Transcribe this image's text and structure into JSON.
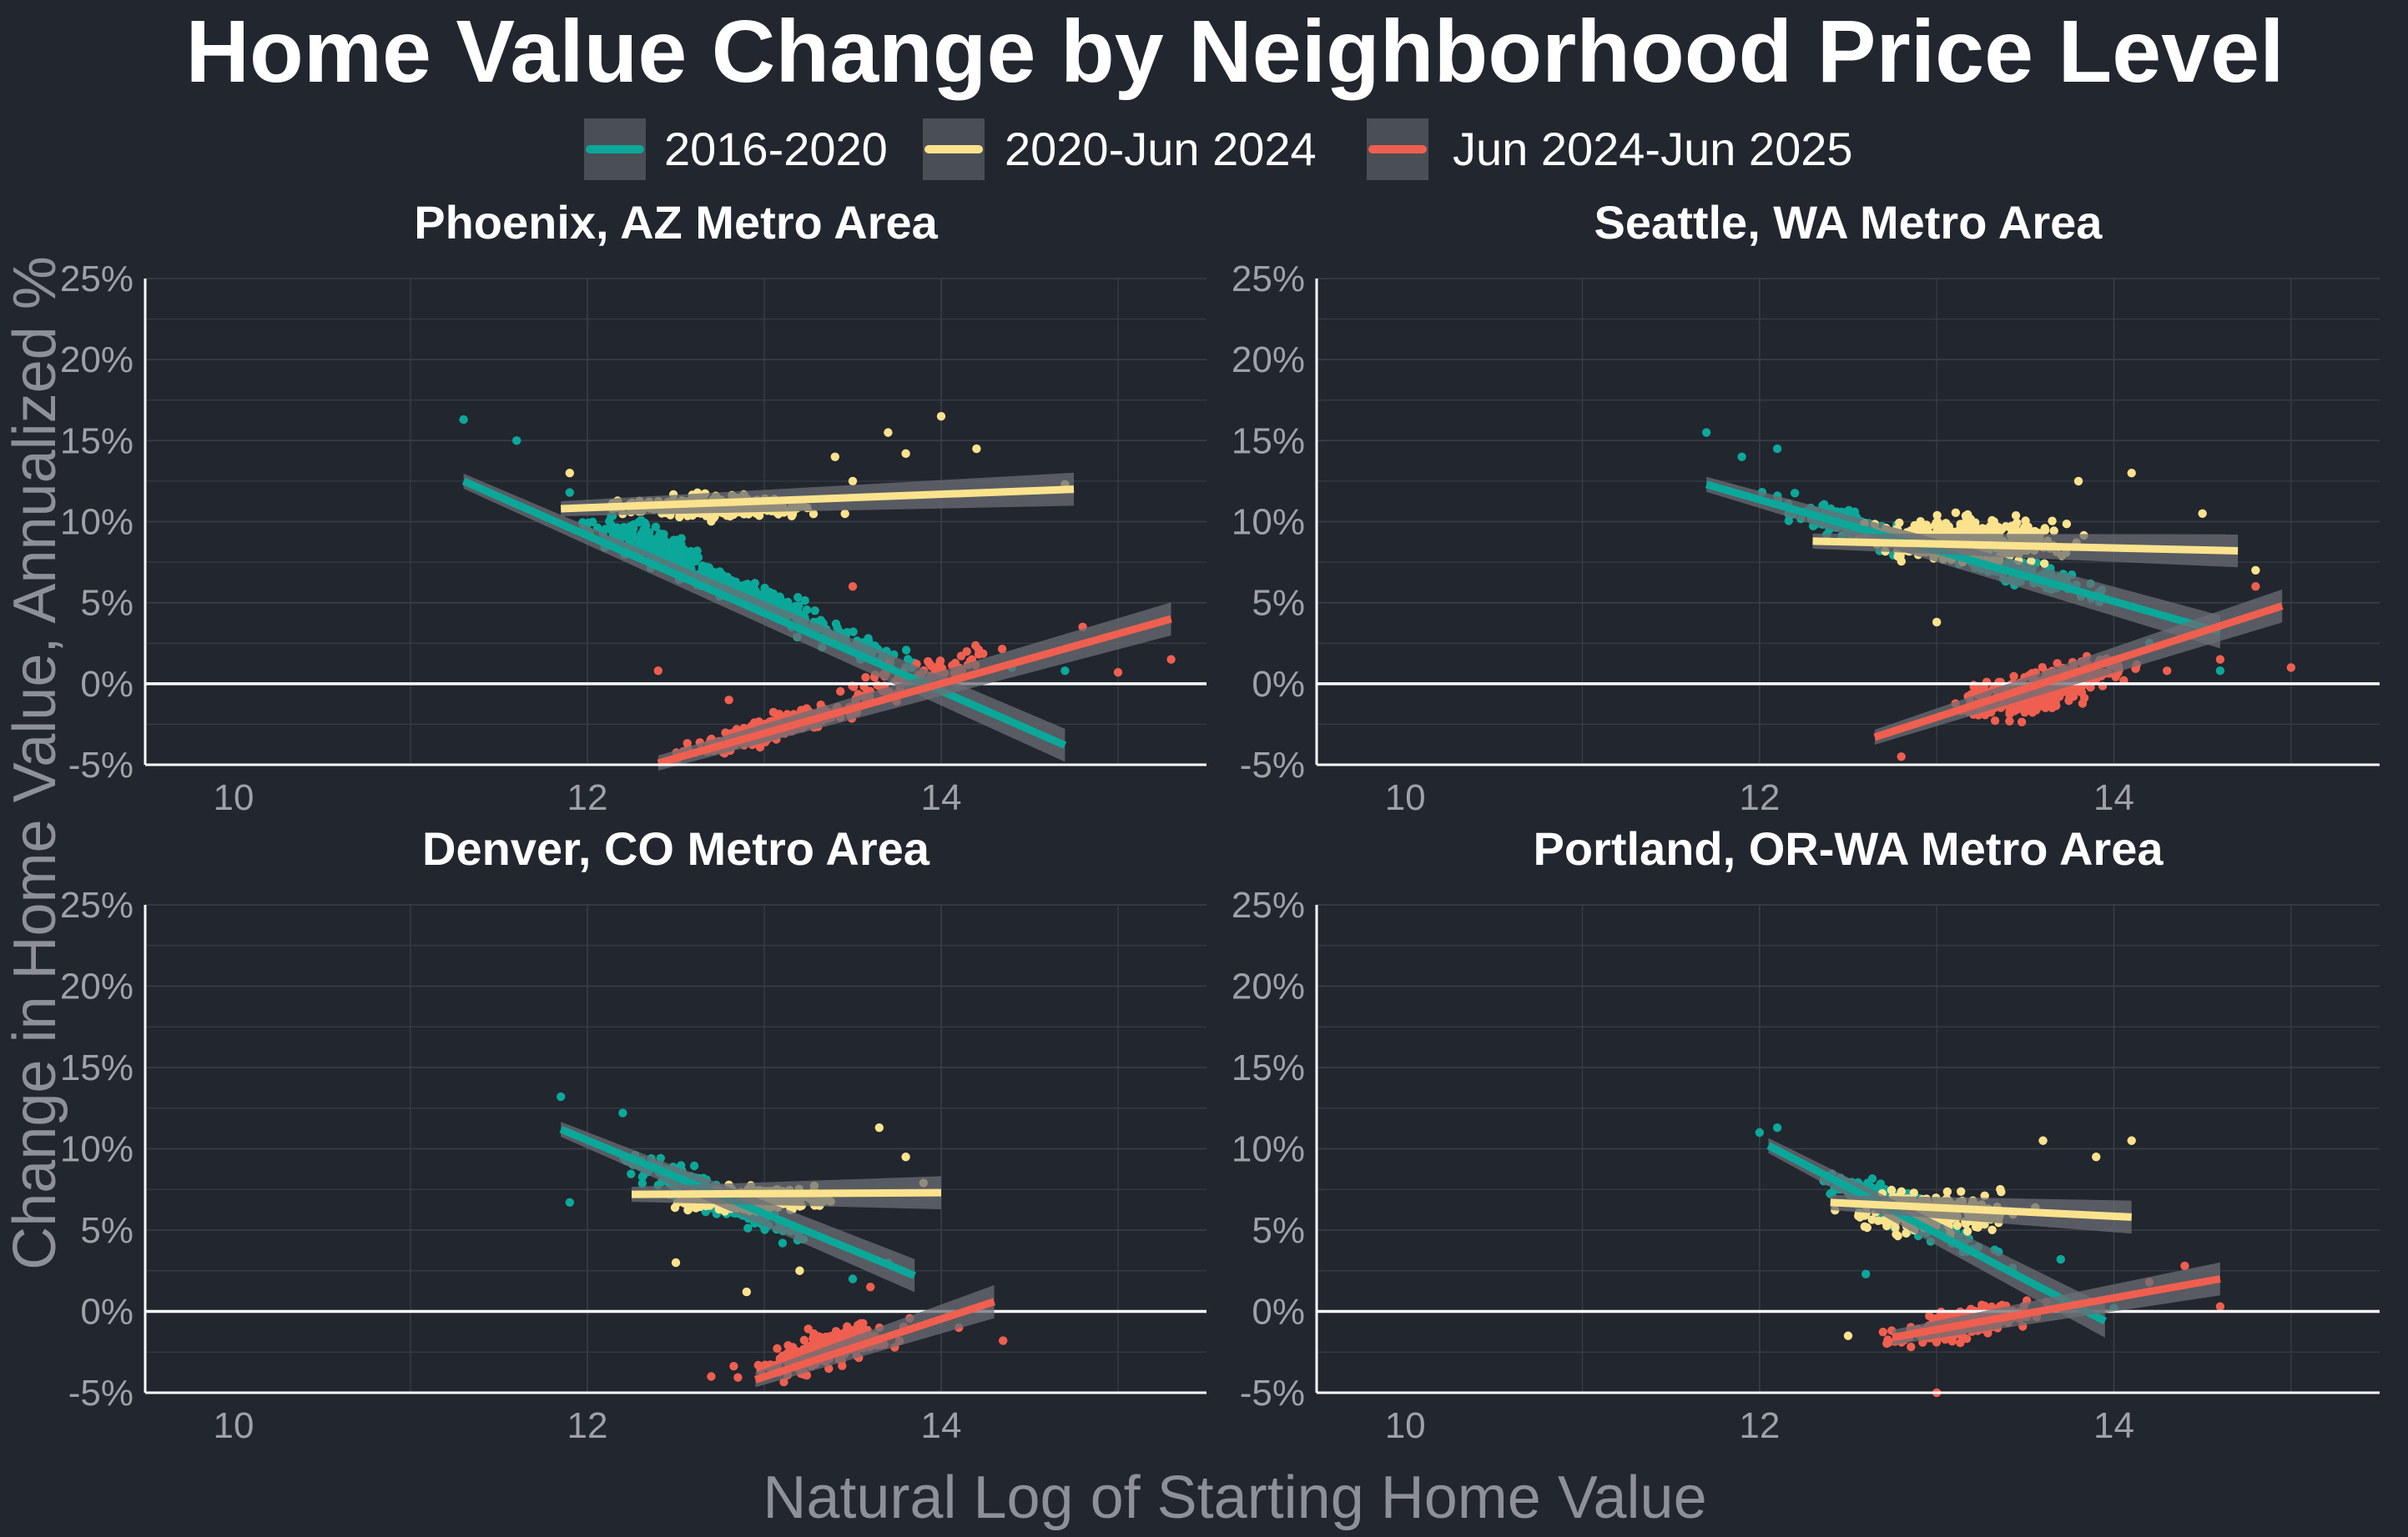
{
  "title": "Home Value Change by Neighborhood Price Level",
  "xlabel": "Natural Log of Starting Home Value",
  "ylabel": "Change in Home Value, Annualized %",
  "colors": {
    "background": "#22262e",
    "2016-2020": "#0ba89a",
    "2020-Jun 2024": "#fbe38e",
    "Jun 2024-Jun 2025": "#ef5f50",
    "grid": "#3a3e47",
    "zero_line": "#ffffff",
    "tick_text": "#9ea1a8"
  },
  "legend": [
    {
      "key": "2016-2020",
      "label": "2016-2020"
    },
    {
      "key": "2020-Jun 2024",
      "label": "2020-Jun 2024"
    },
    {
      "key": "Jun 2024-Jun 2025",
      "label": "Jun 2024-Jun 2025"
    }
  ],
  "chart_data": {
    "type": "scatter",
    "facets": [
      "Phoenix, AZ Metro Area",
      "Seattle, WA Metro Area",
      "Denver, CO Metro Area",
      "Portland, OR-WA Metro Area"
    ],
    "x_ticks": [
      10,
      12,
      14
    ],
    "x_tick_labels": [
      "10",
      "12",
      "14"
    ],
    "y_ticks": [
      -5,
      0,
      5,
      10,
      15,
      20,
      25
    ],
    "y_tick_labels": [
      "-5%",
      "0%",
      "5%",
      "10%",
      "15%",
      "20%",
      "25%"
    ],
    "xlim": [
      9.5,
      15.5
    ],
    "ylim": [
      -5,
      25
    ],
    "zero_line": 0,
    "grid": true,
    "legend_position": "top",
    "panels": [
      {
        "name": "Phoenix, AZ Metro Area",
        "series": [
          {
            "name": "2016-2020",
            "fit": [
              [
                11.3,
                12.5
              ],
              [
                14.7,
                -3.8
              ]
            ],
            "clouds": [
              {
                "xc": 12.35,
                "yc": 8.5,
                "sx": 0.3,
                "sy": 1.6,
                "n": 200,
                "slope": -3.5
              },
              {
                "xc": 12.9,
                "yc": 5.6,
                "sx": 0.35,
                "sy": 1.0,
                "n": 260,
                "slope": -3.8
              },
              {
                "xc": 13.5,
                "yc": 2.5,
                "sx": 0.35,
                "sy": 1.2,
                "n": 70,
                "slope": -3.8
              }
            ],
            "outliers": [
              [
                11.3,
                16.3
              ],
              [
                11.6,
                15.0
              ],
              [
                14.4,
                1.0
              ],
              [
                14.7,
                0.8
              ],
              [
                13.9,
                0.3
              ],
              [
                11.9,
                11.8
              ]
            ]
          },
          {
            "name": "2020-Jun 2024",
            "fit": [
              [
                11.85,
                10.8
              ],
              [
                14.75,
                12.0
              ]
            ],
            "clouds": [
              {
                "xc": 12.75,
                "yc": 10.9,
                "sx": 0.38,
                "sy": 0.9,
                "n": 380,
                "slope": 0
              }
            ],
            "outliers": [
              [
                14.0,
                16.5
              ],
              [
                13.7,
                15.5
              ],
              [
                13.8,
                14.2
              ],
              [
                13.4,
                14.0
              ],
              [
                14.7,
                12.3
              ],
              [
                14.2,
                14.5
              ],
              [
                13.5,
                12.5
              ],
              [
                11.9,
                13.0
              ]
            ]
          },
          {
            "name": "Jun 2024-Jun 2025",
            "fit": [
              [
                12.4,
                -4.9
              ],
              [
                15.3,
                4.0
              ]
            ],
            "clouds": [
              {
                "xc": 13.05,
                "yc": -2.8,
                "sx": 0.35,
                "sy": 1.0,
                "n": 340,
                "slope": 3.0
              },
              {
                "xc": 13.9,
                "yc": 0.6,
                "sx": 0.4,
                "sy": 1.4,
                "n": 80,
                "slope": 3.0
              }
            ],
            "outliers": [
              [
                12.4,
                0.8
              ],
              [
                13.5,
                6.0
              ],
              [
                15.3,
                1.5
              ],
              [
                15.0,
                0.7
              ],
              [
                14.8,
                3.5
              ],
              [
                12.8,
                -1.0
              ]
            ]
          }
        ]
      },
      {
        "name": "Seattle, WA Metro Area",
        "series": [
          {
            "name": "2016-2020",
            "fit": [
              [
                11.7,
                12.3
              ],
              [
                14.6,
                3.2
              ]
            ],
            "clouds": [
              {
                "xc": 12.6,
                "yc": 9.5,
                "sx": 0.35,
                "sy": 1.3,
                "n": 200,
                "slope": -3.0
              },
              {
                "xc": 13.4,
                "yc": 7.2,
                "sx": 0.4,
                "sy": 1.3,
                "n": 150,
                "slope": -3.0
              }
            ],
            "outliers": [
              [
                11.7,
                15.5
              ],
              [
                11.9,
                14.0
              ],
              [
                12.1,
                14.5
              ],
              [
                14.6,
                0.8
              ],
              [
                14.2,
                2.5
              ]
            ]
          },
          {
            "name": "2020-Jun 2024",
            "fit": [
              [
                12.3,
                8.8
              ],
              [
                14.7,
                8.2
              ]
            ],
            "clouds": [
              {
                "xc": 13.2,
                "yc": 8.9,
                "sx": 0.4,
                "sy": 1.9,
                "n": 380,
                "slope": 0
              }
            ],
            "outliers": [
              [
                14.1,
                13.0
              ],
              [
                14.5,
                10.5
              ],
              [
                14.8,
                7.0
              ],
              [
                13.8,
                12.5
              ],
              [
                13.0,
                3.8
              ]
            ]
          },
          {
            "name": "Jun 2024-Jun 2025",
            "fit": [
              [
                12.65,
                -3.3
              ],
              [
                14.95,
                4.8
              ]
            ],
            "clouds": [
              {
                "xc": 13.6,
                "yc": -0.3,
                "sx": 0.35,
                "sy": 2.0,
                "n": 380,
                "slope": 2.5
              }
            ],
            "outliers": [
              [
                15.0,
                1.0
              ],
              [
                14.8,
                6.0
              ],
              [
                12.8,
                -4.5
              ],
              [
                14.6,
                1.5
              ],
              [
                14.3,
                0.8
              ]
            ]
          }
        ]
      },
      {
        "name": "Denver, CO Metro Area",
        "series": [
          {
            "name": "2016-2020",
            "fit": [
              [
                11.85,
                11.2
              ],
              [
                13.85,
                2.2
              ]
            ],
            "clouds": [
              {
                "xc": 12.7,
                "yc": 7.2,
                "sx": 0.35,
                "sy": 1.5,
                "n": 300,
                "slope": -4.5
              }
            ],
            "outliers": [
              [
                11.85,
                13.2
              ],
              [
                12.2,
                12.2
              ],
              [
                11.9,
                6.7
              ],
              [
                13.7,
                3.0
              ],
              [
                13.5,
                2.0
              ]
            ]
          },
          {
            "name": "2020-Jun 2024",
            "fit": [
              [
                12.25,
                7.2
              ],
              [
                14.0,
                7.3
              ]
            ],
            "clouds": [
              {
                "xc": 12.95,
                "yc": 6.9,
                "sx": 0.3,
                "sy": 1.0,
                "n": 330,
                "slope": 0
              }
            ],
            "outliers": [
              [
                13.65,
                11.3
              ],
              [
                13.8,
                9.5
              ],
              [
                13.9,
                7.9
              ],
              [
                12.5,
                3.0
              ],
              [
                13.2,
                2.5
              ],
              [
                12.9,
                1.2
              ]
            ]
          },
          {
            "name": "Jun 2024-Jun 2025",
            "fit": [
              [
                12.95,
                -4.2
              ],
              [
                14.3,
                0.6
              ]
            ],
            "clouds": [
              {
                "xc": 13.35,
                "yc": -2.3,
                "sx": 0.28,
                "sy": 1.5,
                "n": 280,
                "slope": 3.0
              }
            ],
            "outliers": [
              [
                14.35,
                -1.8
              ],
              [
                14.1,
                -1.0
              ],
              [
                12.7,
                -4.0
              ],
              [
                13.6,
                1.5
              ]
            ]
          }
        ]
      },
      {
        "name": "Portland, OR-WA Metro Area",
        "series": [
          {
            "name": "2016-2020",
            "fit": [
              [
                12.05,
                10.2
              ],
              [
                13.95,
                -0.6
              ]
            ],
            "clouds": [
              {
                "xc": 12.8,
                "yc": 6.3,
                "sx": 0.35,
                "sy": 1.6,
                "n": 280,
                "slope": -5.0
              }
            ],
            "outliers": [
              [
                12.1,
                11.3
              ],
              [
                12.0,
                11.0
              ],
              [
                12.6,
                2.3
              ],
              [
                13.7,
                3.2
              ],
              [
                14.0,
                0.2
              ]
            ]
          },
          {
            "name": "2020-Jun 2024",
            "fit": [
              [
                12.4,
                6.7
              ],
              [
                14.1,
                5.8
              ]
            ],
            "clouds": [
              {
                "xc": 12.95,
                "yc": 6.1,
                "sx": 0.32,
                "sy": 1.7,
                "n": 260,
                "slope": 0
              }
            ],
            "outliers": [
              [
                14.1,
                10.5
              ],
              [
                13.6,
                10.5
              ],
              [
                12.5,
                -1.5
              ],
              [
                13.9,
                9.5
              ]
            ]
          },
          {
            "name": "Jun 2024-Jun 2025",
            "fit": [
              [
                12.75,
                -1.6
              ],
              [
                14.6,
                2.0
              ]
            ],
            "clouds": [
              {
                "xc": 13.15,
                "yc": -0.7,
                "sx": 0.28,
                "sy": 1.3,
                "n": 260,
                "slope": 2.0
              }
            ],
            "outliers": [
              [
                14.6,
                0.3
              ],
              [
                14.4,
                2.8
              ],
              [
                13.0,
                -5.0
              ],
              [
                14.2,
                1.8
              ]
            ]
          }
        ]
      }
    ]
  }
}
